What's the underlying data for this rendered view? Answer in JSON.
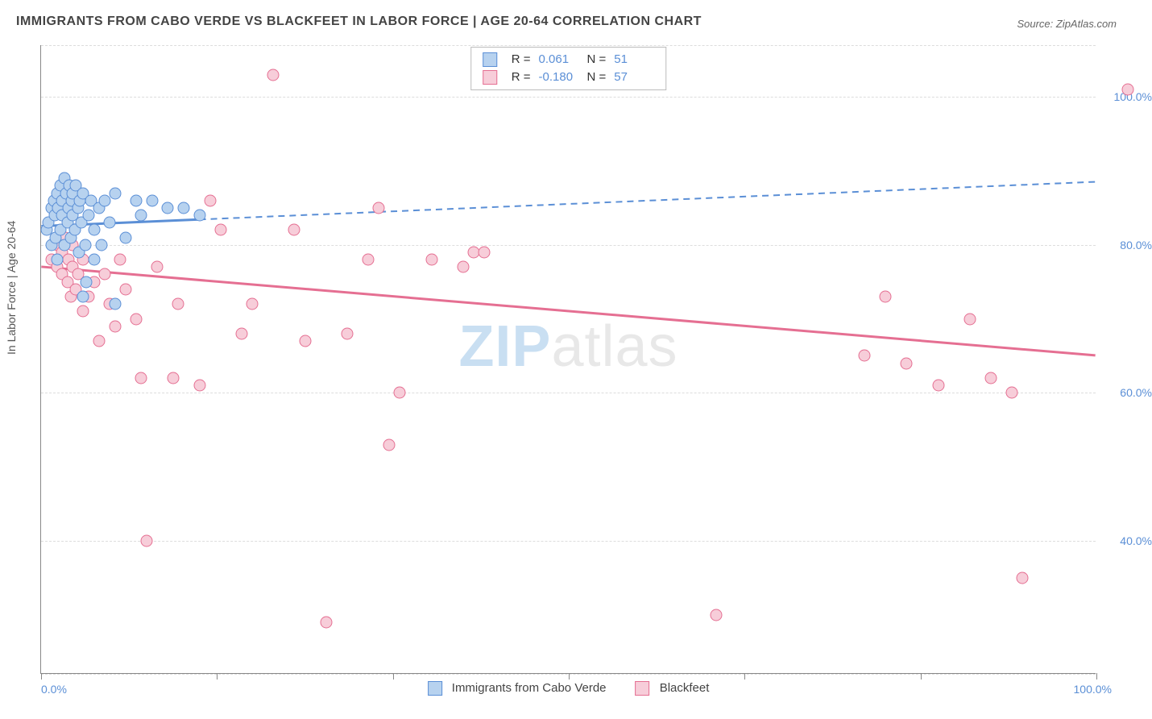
{
  "title": "IMMIGRANTS FROM CABO VERDE VS BLACKFEET IN LABOR FORCE | AGE 20-64 CORRELATION CHART",
  "source_label": "Source: ZipAtlas.com",
  "ylabel": "In Labor Force | Age 20-64",
  "watermark_a": "ZIP",
  "watermark_b": "atlas",
  "xaxis": {
    "min": 0,
    "max": 100,
    "ticks_pct": [
      0,
      16.67,
      33.33,
      50,
      66.67,
      83.33,
      100
    ],
    "label_0": "0.0%",
    "label_100": "100.0%"
  },
  "yaxis": {
    "ticks": [
      {
        "value": 100,
        "label": "100.0%"
      },
      {
        "value": 80,
        "label": "80.0%"
      },
      {
        "value": 60,
        "label": "60.0%"
      },
      {
        "value": 40,
        "label": "40.0%"
      }
    ],
    "grid_extra": [
      107,
      22
    ],
    "visible_min": 22,
    "visible_max": 107
  },
  "series": {
    "a": {
      "name": "Immigrants from Cabo Verde",
      "fill": "#b7d2ef",
      "stroke": "#5b8fd6",
      "r_value": "0.061",
      "n_value": "51",
      "trend": {
        "x1": 0,
        "y1": 82.5,
        "x2": 100,
        "y2": 88.5,
        "solid_until_x": 15
      },
      "points": [
        [
          0.5,
          82
        ],
        [
          0.7,
          83
        ],
        [
          1.0,
          80
        ],
        [
          1.0,
          85
        ],
        [
          1.2,
          86
        ],
        [
          1.3,
          84
        ],
        [
          1.4,
          81
        ],
        [
          1.5,
          87
        ],
        [
          1.5,
          78
        ],
        [
          1.6,
          85
        ],
        [
          1.8,
          88
        ],
        [
          1.8,
          82
        ],
        [
          2.0,
          86
        ],
        [
          2.0,
          84
        ],
        [
          2.2,
          89
        ],
        [
          2.2,
          80
        ],
        [
          2.4,
          87
        ],
        [
          2.5,
          83
        ],
        [
          2.6,
          85
        ],
        [
          2.7,
          88
        ],
        [
          2.8,
          81
        ],
        [
          2.9,
          86
        ],
        [
          3.0,
          87
        ],
        [
          3.0,
          84
        ],
        [
          3.2,
          82
        ],
        [
          3.3,
          88
        ],
        [
          3.5,
          85
        ],
        [
          3.6,
          79
        ],
        [
          3.7,
          86
        ],
        [
          3.8,
          83
        ],
        [
          4.0,
          73
        ],
        [
          4.0,
          87
        ],
        [
          4.2,
          80
        ],
        [
          4.3,
          75
        ],
        [
          4.5,
          84
        ],
        [
          4.7,
          86
        ],
        [
          5.0,
          78
        ],
        [
          5.0,
          82
        ],
        [
          5.5,
          85
        ],
        [
          5.7,
          80
        ],
        [
          6.0,
          86
        ],
        [
          6.5,
          83
        ],
        [
          7.0,
          87
        ],
        [
          7.0,
          72
        ],
        [
          8.0,
          81
        ],
        [
          9.0,
          86
        ],
        [
          9.5,
          84
        ],
        [
          10.5,
          86
        ],
        [
          12.0,
          85
        ],
        [
          13.5,
          85
        ],
        [
          15.0,
          84
        ]
      ]
    },
    "b": {
      "name": "Blackfeet",
      "fill": "#f7cdd9",
      "stroke": "#e56f92",
      "r_value": "-0.180",
      "n_value": "57",
      "trend": {
        "x1": 0,
        "y1": 77.0,
        "x2": 100,
        "y2": 65.0,
        "solid_until_x": 100
      },
      "points": [
        [
          1.0,
          78
        ],
        [
          1.5,
          80
        ],
        [
          1.5,
          77
        ],
        [
          2.0,
          76
        ],
        [
          2.0,
          79
        ],
        [
          2.3,
          81
        ],
        [
          2.5,
          75
        ],
        [
          2.6,
          78
        ],
        [
          2.8,
          73
        ],
        [
          3.0,
          77
        ],
        [
          3.0,
          80
        ],
        [
          3.3,
          74
        ],
        [
          3.5,
          76
        ],
        [
          4.0,
          71
        ],
        [
          4.0,
          78
        ],
        [
          4.5,
          73
        ],
        [
          5.0,
          75
        ],
        [
          5.5,
          67
        ],
        [
          6.0,
          76
        ],
        [
          6.5,
          72
        ],
        [
          7.0,
          69
        ],
        [
          7.5,
          78
        ],
        [
          8.0,
          74
        ],
        [
          9.0,
          70
        ],
        [
          9.5,
          62
        ],
        [
          10.0,
          40
        ],
        [
          11.0,
          77
        ],
        [
          12.5,
          62
        ],
        [
          13.0,
          72
        ],
        [
          15.0,
          61
        ],
        [
          16.0,
          86
        ],
        [
          17.0,
          82
        ],
        [
          19.0,
          68
        ],
        [
          20.0,
          72
        ],
        [
          22.0,
          103
        ],
        [
          24.0,
          82
        ],
        [
          25.0,
          67
        ],
        [
          27.0,
          29
        ],
        [
          29.0,
          68
        ],
        [
          31.0,
          78
        ],
        [
          32.0,
          85
        ],
        [
          33.0,
          53
        ],
        [
          34.0,
          60
        ],
        [
          37.0,
          78
        ],
        [
          40.0,
          77
        ],
        [
          41.0,
          79
        ],
        [
          42.0,
          79
        ],
        [
          64.0,
          30
        ],
        [
          78.0,
          65
        ],
        [
          80.0,
          73
        ],
        [
          82.0,
          64
        ],
        [
          85.0,
          61
        ],
        [
          88.0,
          70
        ],
        [
          90.0,
          62
        ],
        [
          92.0,
          60
        ],
        [
          93.0,
          35
        ],
        [
          103.0,
          101
        ]
      ]
    }
  }
}
